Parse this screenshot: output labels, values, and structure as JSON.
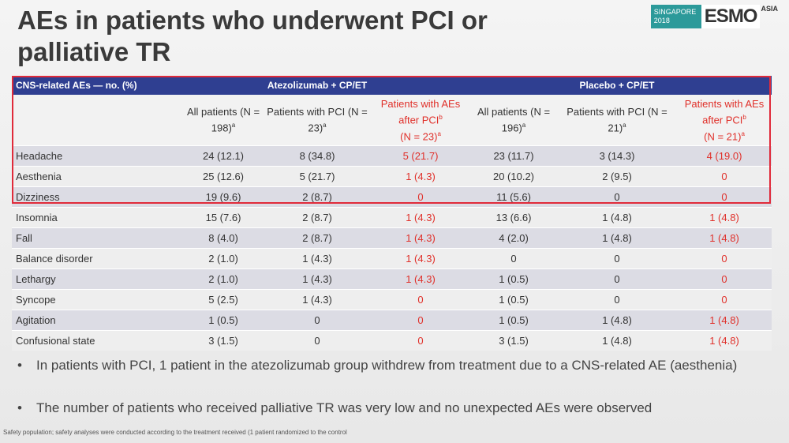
{
  "header": {
    "title": "AEs in patients who underwent PCI or palliative TR",
    "logo": {
      "place": "SINGAPORE 2018",
      "brand": "ESMO",
      "region": "ASIA"
    }
  },
  "table": {
    "corner": "CNS-related AEs — no. (%)",
    "groups": [
      "Atezolizumab + CP/ET",
      "Placebo + CP/ET"
    ],
    "columns": [
      {
        "text": "All patients (N = 198)",
        "sup": "a"
      },
      {
        "text": "Patients with PCI (N = 23)",
        "sup": "a"
      },
      {
        "text": "Patients with AEs after PCI",
        "sup": "b",
        "text2": "(N = 23)",
        "sup2": "a"
      },
      {
        "text": "All patients (N = 196)",
        "sup": "a"
      },
      {
        "text": "Patients with PCI (N = 21)",
        "sup": "a"
      },
      {
        "text": "Patients with AEs after PCI",
        "sup": "b",
        "text2": "(N = 21)",
        "sup2": "a"
      }
    ],
    "rows": [
      {
        "label": "Headache",
        "cells": [
          "24 (12.1)",
          "8 (34.8)",
          "5 (21.7)",
          "23 (11.7)",
          "3 (14.3)",
          "4 (19.0)"
        ]
      },
      {
        "label": "Aesthenia",
        "cells": [
          "25 (12.6)",
          "5 (21.7)",
          "1 (4.3)",
          "20 (10.2)",
          "2 (9.5)",
          "0"
        ]
      },
      {
        "label": "Dizziness",
        "cells": [
          "19 (9.6)",
          "2 (8.7)",
          "0",
          "11 (5.6)",
          "0",
          "0"
        ]
      },
      {
        "label": "Insomnia",
        "cells": [
          "15 (7.6)",
          "2 (8.7)",
          "1 (4.3)",
          "13 (6.6)",
          "1 (4.8)",
          "1 (4.8)"
        ]
      },
      {
        "label": "Fall",
        "cells": [
          "8 (4.0)",
          "2 (8.7)",
          "1 (4.3)",
          "4 (2.0)",
          "1 (4.8)",
          "1 (4.8)"
        ]
      },
      {
        "label": "Balance disorder",
        "cells": [
          "2 (1.0)",
          "1 (4.3)",
          "1 (4.3)",
          "0",
          "0",
          "0"
        ]
      },
      {
        "label": "Lethargy",
        "cells": [
          "2 (1.0)",
          "1 (4.3)",
          "1 (4.3)",
          "1 (0.5)",
          "0",
          "0"
        ]
      },
      {
        "label": "Syncope",
        "cells": [
          "5 (2.5)",
          "1 (4.3)",
          "0",
          "1 (0.5)",
          "0",
          "0"
        ]
      },
      {
        "label": "Agitation",
        "cells": [
          "1 (0.5)",
          "0",
          "0",
          "1 (0.5)",
          "1 (4.8)",
          "1 (4.8)"
        ]
      },
      {
        "label": "Confusional state",
        "cells": [
          "3 (1.5)",
          "0",
          "0",
          "3 (1.5)",
          "1 (4.8)",
          "1 (4.8)"
        ]
      }
    ]
  },
  "bullets": [
    "In patients with PCI, 1 patient in the atezolizumab group withdrew from treatment due to a CNS-related AE (aesthenia)",
    "The number of patients who received palliative TR was very low and no unexpected AEs were observed"
  ],
  "footnote": "Safety population; safety analyses were conducted according to the treatment received (1 patient randomized to the control"
}
